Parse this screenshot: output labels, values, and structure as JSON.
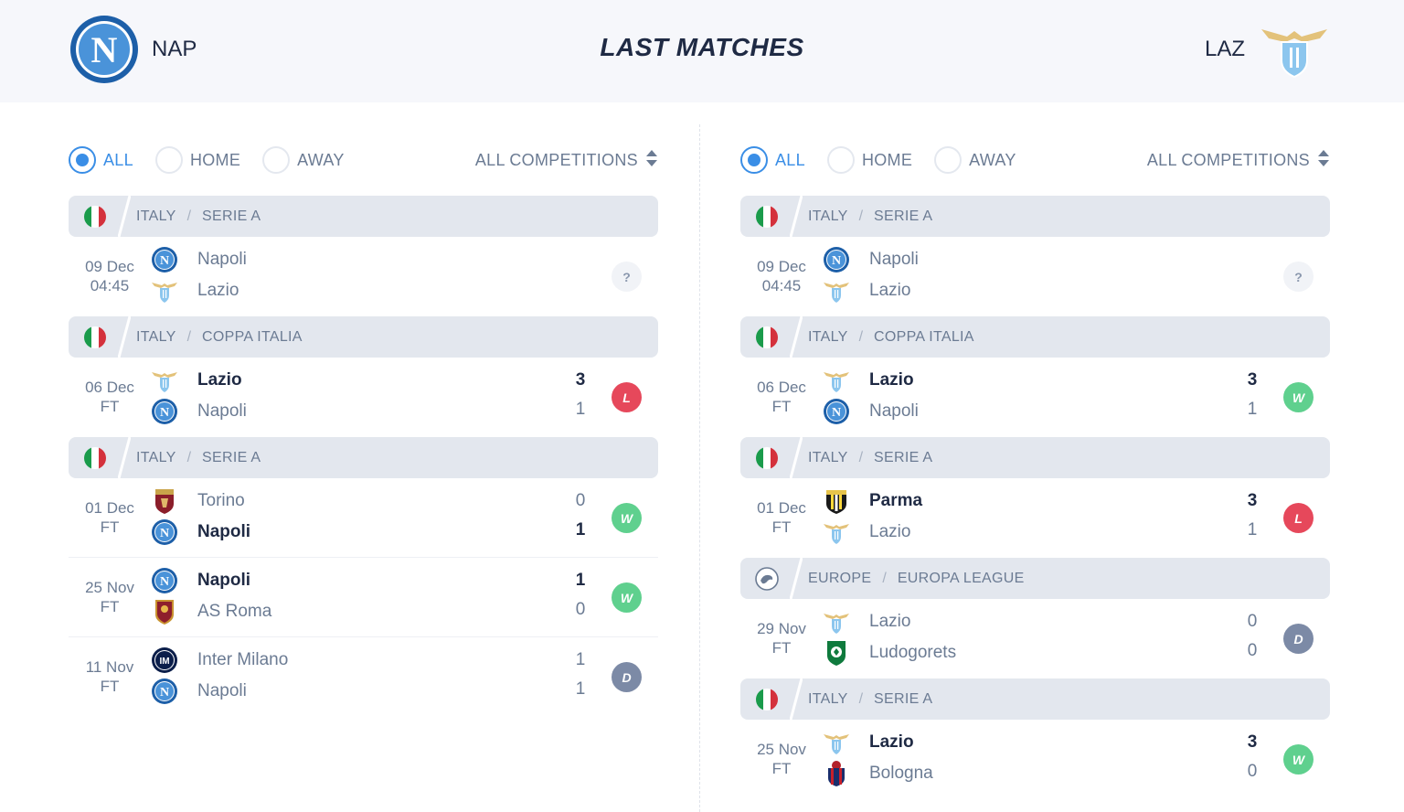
{
  "header": {
    "title": "LAST MATCHES",
    "home_abbr": "NAP",
    "away_abbr": "LAZ"
  },
  "colors": {
    "accent": "#3a8ee6",
    "win": "#5fd08e",
    "loss": "#e6485b",
    "draw": "#7c8aa6"
  },
  "panels": [
    {
      "filters": {
        "all": "ALL",
        "home": "HOME",
        "away": "AWAY",
        "active": "all",
        "competition": "ALL COMPETITIONS"
      },
      "groups": [
        {
          "flag": "italy-flag",
          "country": "ITALY",
          "competition": "SERIE A",
          "matches": [
            {
              "date": "09 Dec",
              "status": "04:45",
              "team1": "Napoli",
              "crest1": "napoli",
              "team2": "Lazio",
              "crest2": "lazio",
              "score1": "",
              "score2": "",
              "winner": 0,
              "result": "?"
            }
          ]
        },
        {
          "flag": "italy-flag",
          "country": "ITALY",
          "competition": "COPPA ITALIA",
          "matches": [
            {
              "date": "06 Dec",
              "status": "FT",
              "team1": "Lazio",
              "crest1": "lazio",
              "team2": "Napoli",
              "crest2": "napoli",
              "score1": "3",
              "score2": "1",
              "winner": 1,
              "result": "L"
            }
          ]
        },
        {
          "flag": "italy-flag",
          "country": "ITALY",
          "competition": "SERIE A",
          "matches": [
            {
              "date": "01 Dec",
              "status": "FT",
              "team1": "Torino",
              "crest1": "torino",
              "team2": "Napoli",
              "crest2": "napoli",
              "score1": "0",
              "score2": "1",
              "winner": 2,
              "result": "W"
            },
            {
              "date": "25 Nov",
              "status": "FT",
              "team1": "Napoli",
              "crest1": "napoli",
              "team2": "AS Roma",
              "crest2": "roma",
              "score1": "1",
              "score2": "0",
              "winner": 1,
              "result": "W"
            },
            {
              "date": "11 Nov",
              "status": "FT",
              "team1": "Inter Milano",
              "crest1": "inter",
              "team2": "Napoli",
              "crest2": "napoli",
              "score1": "1",
              "score2": "1",
              "winner": 0,
              "result": "D"
            }
          ]
        }
      ]
    },
    {
      "filters": {
        "all": "ALL",
        "home": "HOME",
        "away": "AWAY",
        "active": "all",
        "competition": "ALL COMPETITIONS"
      },
      "groups": [
        {
          "flag": "italy-flag",
          "country": "ITALY",
          "competition": "SERIE A",
          "matches": [
            {
              "date": "09 Dec",
              "status": "04:45",
              "team1": "Napoli",
              "crest1": "napoli",
              "team2": "Lazio",
              "crest2": "lazio",
              "score1": "",
              "score2": "",
              "winner": 0,
              "result": "?"
            }
          ]
        },
        {
          "flag": "italy-flag",
          "country": "ITALY",
          "competition": "COPPA ITALIA",
          "matches": [
            {
              "date": "06 Dec",
              "status": "FT",
              "team1": "Lazio",
              "crest1": "lazio",
              "team2": "Napoli",
              "crest2": "napoli",
              "score1": "3",
              "score2": "1",
              "winner": 1,
              "result": "W"
            }
          ]
        },
        {
          "flag": "italy-flag",
          "country": "ITALY",
          "competition": "SERIE A",
          "matches": [
            {
              "date": "01 Dec",
              "status": "FT",
              "team1": "Parma",
              "crest1": "parma",
              "team2": "Lazio",
              "crest2": "lazio",
              "score1": "3",
              "score2": "1",
              "winner": 1,
              "result": "L"
            }
          ]
        },
        {
          "flag": "europe-globe",
          "country": "EUROPE",
          "competition": "EUROPA LEAGUE",
          "matches": [
            {
              "date": "29 Nov",
              "status": "FT",
              "team1": "Lazio",
              "crest1": "lazio",
              "team2": "Ludogorets",
              "crest2": "ludogorets",
              "score1": "0",
              "score2": "0",
              "winner": 0,
              "result": "D"
            }
          ]
        },
        {
          "flag": "italy-flag",
          "country": "ITALY",
          "competition": "SERIE A",
          "matches": [
            {
              "date": "25 Nov",
              "status": "FT",
              "team1": "Lazio",
              "crest1": "lazio",
              "team2": "Bologna",
              "crest2": "bologna",
              "score1": "3",
              "score2": "0",
              "winner": 1,
              "result": "W"
            }
          ]
        }
      ]
    }
  ]
}
